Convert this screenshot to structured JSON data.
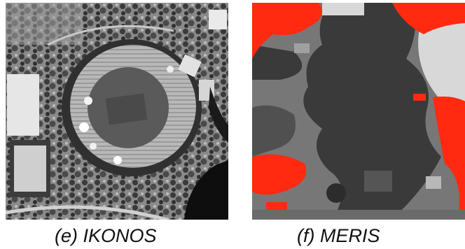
{
  "panels": [
    {
      "caption": "(e) IKONOS"
    },
    {
      "caption": "(f) MERIS"
    }
  ],
  "colors": {
    "red_class": "#ff2a10",
    "dark_class": "#3a3a3a",
    "mid_class": "#777777",
    "light_class": "#d8d8d8"
  }
}
